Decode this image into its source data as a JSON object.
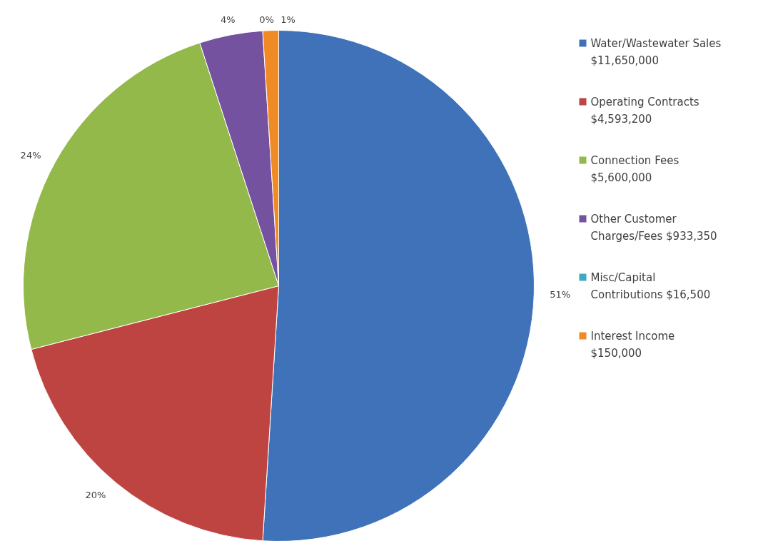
{
  "chart_data": {
    "type": "pie",
    "categories": [
      "Water/Wastewater Sales $11,650,000",
      "Operating Contracts $4,593,200",
      "Connection Fees $5,600,000",
      "Other Customer Charges/Fees  $933,350",
      "Misc/Capital Contributions  $16,500",
      "Interest Income $150,000"
    ],
    "values": [
      51,
      20,
      24,
      4,
      0,
      1
    ],
    "value_labels": [
      "51%",
      "20%",
      "24%",
      "4%",
      "0%",
      "1%"
    ],
    "colors": [
      "#3f72b8",
      "#be4441",
      "#93b94b",
      "#7552a0",
      "#3fa8c4",
      "#f08a24"
    ],
    "legend": "right"
  }
}
